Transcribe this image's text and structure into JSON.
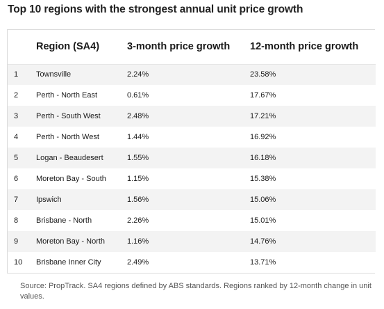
{
  "title": "Top 10 regions with the strongest annual unit price growth",
  "footnote": "Source: PropTrack. SA4 regions defined by ABS standards. Regions ranked by 12-month change in unit values.",
  "chart_data": {
    "type": "table",
    "title": "Top 10 regions with the strongest annual unit price growth",
    "columns": [
      "",
      "Region (SA4)",
      "3-month price growth",
      "12-month price growth"
    ],
    "rows": [
      [
        "1",
        "Townsville",
        "2.24%",
        "23.58%"
      ],
      [
        "2",
        "Perth - North East",
        "0.61%",
        "17.67%"
      ],
      [
        "3",
        "Perth - South West",
        "2.48%",
        "17.21%"
      ],
      [
        "4",
        "Perth - North West",
        "1.44%",
        "16.92%"
      ],
      [
        "5",
        "Logan - Beaudesert",
        "1.55%",
        "16.18%"
      ],
      [
        "6",
        "Moreton Bay - South",
        "1.15%",
        "15.38%"
      ],
      [
        "7",
        "Ipswich",
        "1.56%",
        "15.06%"
      ],
      [
        "8",
        "Brisbane - North",
        "2.26%",
        "15.01%"
      ],
      [
        "9",
        "Moreton Bay - North",
        "1.16%",
        "14.76%"
      ],
      [
        "10",
        "Brisbane Inner City",
        "2.49%",
        "13.71%"
      ]
    ]
  }
}
